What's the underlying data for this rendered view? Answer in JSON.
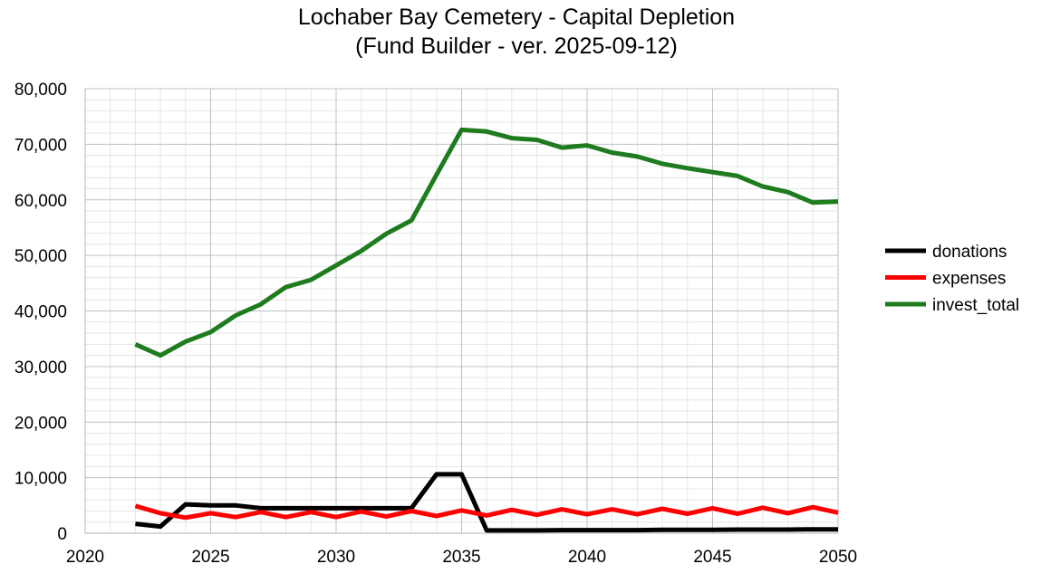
{
  "chart_data": {
    "type": "line",
    "title_line1": "Lochaber Bay Cemetery - Capital Depletion",
    "title_line2": "(Fund Builder - ver. 2025-09-12)",
    "xlim": [
      2020,
      2050
    ],
    "ylim": [
      0,
      80000
    ],
    "x_ticks": [
      2020,
      2025,
      2030,
      2035,
      2040,
      2045,
      2050
    ],
    "y_ticks": [
      0,
      10000,
      20000,
      30000,
      40000,
      50000,
      60000,
      70000,
      80000
    ],
    "x_tick_labels": [
      "2020",
      "2025",
      "2030",
      "2035",
      "2040",
      "2045",
      "2050"
    ],
    "y_tick_labels": [
      "0",
      "10,000",
      "20,000",
      "30,000",
      "40,000",
      "50,000",
      "60,000",
      "70,000",
      "80,000"
    ],
    "grid": true,
    "legend_position": "right",
    "x": [
      2022,
      2023,
      2024,
      2025,
      2026,
      2027,
      2028,
      2029,
      2030,
      2031,
      2032,
      2033,
      2034,
      2035,
      2036,
      2037,
      2038,
      2039,
      2040,
      2041,
      2042,
      2043,
      2044,
      2045,
      2046,
      2047,
      2048,
      2049,
      2050
    ],
    "series": [
      {
        "name": "donations",
        "color": "#000000",
        "values": [
          1700,
          1200,
          5200,
          5000,
          5000,
          4500,
          4500,
          4500,
          4500,
          4500,
          4500,
          4500,
          10600,
          10600,
          500,
          500,
          500,
          550,
          550,
          550,
          550,
          600,
          600,
          600,
          650,
          650,
          650,
          700,
          700
        ]
      },
      {
        "name": "expenses",
        "color": "#ff0000",
        "values": [
          4900,
          3600,
          2800,
          3600,
          2900,
          3800,
          2900,
          3800,
          2900,
          3900,
          3000,
          4000,
          3100,
          4100,
          3200,
          4200,
          3300,
          4300,
          3400,
          4300,
          3400,
          4400,
          3500,
          4500,
          3500,
          4600,
          3600,
          4700,
          3700
        ]
      },
      {
        "name": "invest_total",
        "color": "#1e7b1e",
        "values": [
          34000,
          32000,
          34500,
          36200,
          39200,
          41200,
          44300,
          45600,
          48200,
          50800,
          53900,
          56300,
          64500,
          72600,
          72300,
          71100,
          70800,
          69400,
          69800,
          68500,
          67800,
          66500,
          65700,
          65000,
          64300,
          62400,
          61400,
          59500,
          59700
        ]
      }
    ]
  }
}
